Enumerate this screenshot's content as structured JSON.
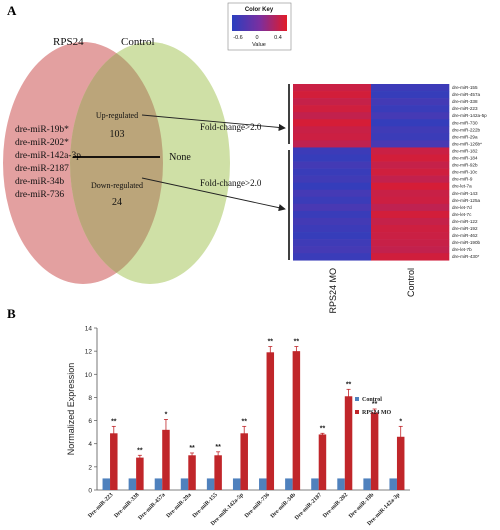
{
  "panel_a": {
    "label": "A",
    "venn": {
      "left_title": "RPS24",
      "right_title": "Control",
      "left_items": [
        "dre-miR-19b*",
        "dre-miR-202*",
        "dre-miR-142a-3p",
        "dre-miR-2187",
        "dre-miR-34b",
        "dre-miR-736"
      ],
      "up_label": "Up-regulated",
      "up_count": "103",
      "down_label": "Down-regulated",
      "down_count": "24",
      "right_label": "None",
      "arrow_label_up": "Fold-change>2.0",
      "arrow_label_down": "Fold-change>2.0",
      "colors": {
        "left_circle": "#e3a0a0",
        "right_circle": "#cfe0a6",
        "overlap": "#bba57a"
      }
    },
    "color_key": {
      "title": "Color Key",
      "ticks": [
        "-0.6",
        "0",
        "0.4"
      ],
      "xlabel": "Value",
      "colors": [
        "#2a3fbf",
        "#7a2fa0",
        "#e21b28"
      ]
    },
    "heatmap": {
      "col_labels": [
        "RPS24 MO",
        "Control"
      ],
      "row_labels": [
        "dre-miR-155",
        "dre-miR-457a",
        "dre-miR-338",
        "dre-miR-223",
        "dre-miR-142a-5p",
        "dre-miR-730",
        "dre-miR-222b",
        "dre-miR-29a",
        "dre-miR-126b*",
        "dre-miR-182",
        "dre-miR-184",
        "dre-miR-92b",
        "dre-miR-10c",
        "dre-miR-9",
        "dre-let-7a",
        "dre-miR-143",
        "dre-miR-125a",
        "dre-let-7d",
        "dre-let-7c",
        "dre-miR-122",
        "dre-miR-192",
        "dre-miR-462",
        "dre-miR-190b",
        "dre-let-7b",
        "dre-miR-430*"
      ],
      "values": [
        [
          0.45,
          -0.55
        ],
        [
          0.5,
          -0.6
        ],
        [
          0.42,
          -0.5
        ],
        [
          0.48,
          -0.58
        ],
        [
          0.4,
          -0.48
        ],
        [
          0.52,
          -0.62
        ],
        [
          0.44,
          -0.52
        ],
        [
          0.46,
          -0.56
        ],
        [
          0.38,
          -0.45
        ],
        [
          -0.55,
          0.45
        ],
        [
          -0.6,
          0.5
        ],
        [
          -0.5,
          0.42
        ],
        [
          -0.58,
          0.48
        ],
        [
          -0.52,
          0.4
        ],
        [
          -0.62,
          0.52
        ],
        [
          -0.48,
          0.44
        ],
        [
          -0.56,
          0.46
        ],
        [
          -0.45,
          0.38
        ],
        [
          -0.58,
          0.5
        ],
        [
          -0.5,
          0.42
        ],
        [
          -0.55,
          0.47
        ],
        [
          -0.6,
          0.45
        ],
        [
          -0.53,
          0.43
        ],
        [
          -0.48,
          0.4
        ],
        [
          -0.57,
          0.49
        ]
      ]
    }
  },
  "panel_b": {
    "label": "B",
    "chart_data": {
      "type": "bar",
      "ylabel": "Normalized Expression",
      "ylim": [
        0,
        14
      ],
      "yticks": [
        "0",
        "2",
        "4",
        "6",
        "8",
        "10",
        "12",
        "14"
      ],
      "categories": [
        "Dre-miR-223",
        "Dre-miR-338",
        "Dre-miR-457a",
        "Dre-miR-29a",
        "Dre-miR-155",
        "Dre-miR-142a-5p",
        "Dre-miR-736",
        "Dre-miR-34b",
        "Dre-miR-2187",
        "Dre-miR-202",
        "Dre-miR-19b",
        "Dre-miR-142a-3p"
      ],
      "series": [
        {
          "name": "Control",
          "color": "#4f81bd",
          "values": [
            1,
            1,
            1,
            1,
            1,
            1,
            1,
            1,
            1,
            1,
            1,
            1
          ]
        },
        {
          "name": "RPS24 MO",
          "color": "#c0262a",
          "values": [
            4.9,
            2.8,
            5.2,
            3.0,
            3.0,
            4.9,
            11.9,
            12.0,
            4.8,
            8.1,
            6.7,
            4.6
          ],
          "errors": [
            0.6,
            0.2,
            0.9,
            0.2,
            0.3,
            0.6,
            0.5,
            0.4,
            0.1,
            0.6,
            0.3,
            0.9
          ]
        }
      ],
      "significance": [
        "**",
        "**",
        "*",
        "**",
        "**",
        "**",
        "**",
        "**",
        "**",
        "**",
        "**",
        "*"
      ],
      "legend_position": "right"
    }
  }
}
